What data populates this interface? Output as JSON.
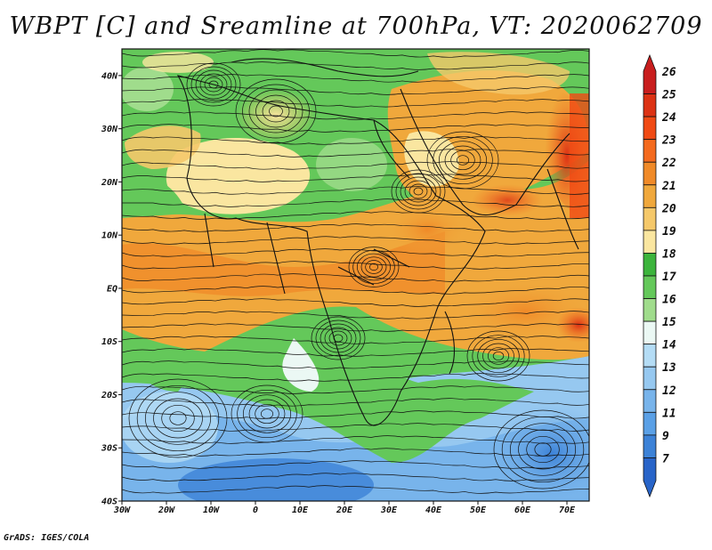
{
  "title": "WBPT [C] and Sreamline at 700hPa, VT: 2020062709",
  "credit": "GrADS: IGES/COLA",
  "map": {
    "lat_labels": [
      {
        "value": 40,
        "label": "40N"
      },
      {
        "value": 30,
        "label": "30N"
      },
      {
        "value": 20,
        "label": "20N"
      },
      {
        "value": 10,
        "label": "10N"
      },
      {
        "value": 0,
        "label": "EQ"
      },
      {
        "value": -10,
        "label": "10S"
      },
      {
        "value": -20,
        "label": "20S"
      },
      {
        "value": -30,
        "label": "30S"
      },
      {
        "value": -40,
        "label": "40S"
      }
    ],
    "lon_labels": [
      {
        "value": -30,
        "label": "30W"
      },
      {
        "value": -20,
        "label": "20W"
      },
      {
        "value": -10,
        "label": "10W"
      },
      {
        "value": 0,
        "label": "0"
      },
      {
        "value": 10,
        "label": "10E"
      },
      {
        "value": 20,
        "label": "20E"
      },
      {
        "value": 30,
        "label": "30E"
      },
      {
        "value": 40,
        "label": "40E"
      },
      {
        "value": 50,
        "label": "50E"
      },
      {
        "value": 60,
        "label": "60E"
      },
      {
        "value": 70,
        "label": "70E"
      }
    ],
    "lon_range": [
      -30,
      75
    ],
    "lat_range": [
      -40,
      45
    ]
  },
  "colorbar": {
    "levels": [
      "26",
      "25",
      "24",
      "23",
      "22",
      "21",
      "20",
      "19",
      "18",
      "17",
      "16",
      "15",
      "14",
      "13",
      "12",
      "11",
      "9",
      "7"
    ],
    "colors": [
      "#c81e1e",
      "#dc3214",
      "#f04a14",
      "#f46a1e",
      "#f08a28",
      "#f0a83c",
      "#f5c86a",
      "#fae6a0",
      "#3cb43c",
      "#64c85a",
      "#a0dc8c",
      "#ebf8f4",
      "#b4dcf5",
      "#96c8f0",
      "#78b4eb",
      "#5aa0e6",
      "#3c82d7",
      "#2864c8"
    ]
  }
}
